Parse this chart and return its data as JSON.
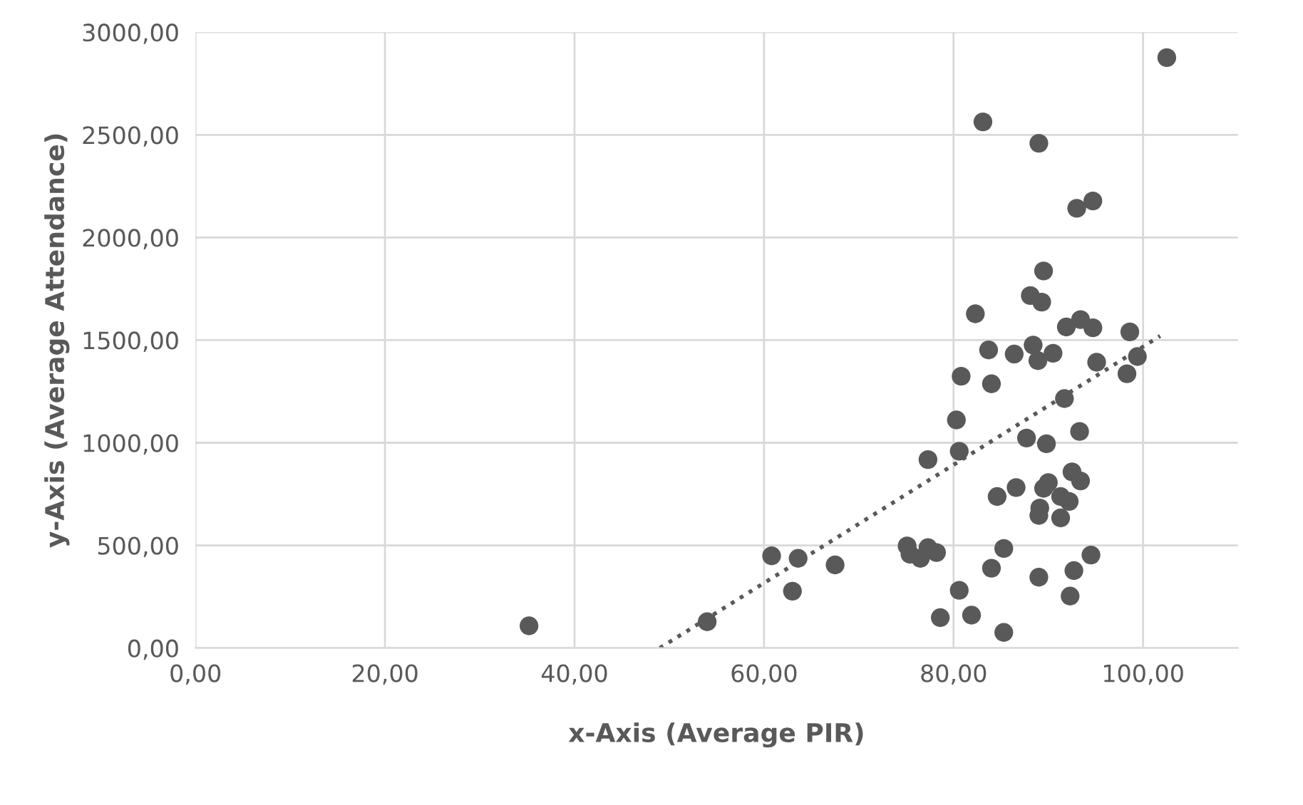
{
  "chart_data": {
    "type": "scatter",
    "xlabel": "x-Axis (Average PIR)",
    "ylabel": "y-Axis (Average Attendance)",
    "xlim": [
      0,
      110
    ],
    "ylim": [
      0,
      3000
    ],
    "xticks": [
      {
        "value": 0,
        "label": "0,00"
      },
      {
        "value": 20,
        "label": "20,00"
      },
      {
        "value": 40,
        "label": "40,00"
      },
      {
        "value": 60,
        "label": "60,00"
      },
      {
        "value": 80,
        "label": "80,00"
      },
      {
        "value": 100,
        "label": "100,00"
      }
    ],
    "yticks": [
      {
        "value": 0,
        "label": "0,00"
      },
      {
        "value": 500,
        "label": "500,00"
      },
      {
        "value": 1000,
        "label": "1000,00"
      },
      {
        "value": 1500,
        "label": "1500,00"
      },
      {
        "value": 2000,
        "label": "2000,00"
      },
      {
        "value": 2500,
        "label": "2500,00"
      },
      {
        "value": 3000,
        "label": "3000,00"
      }
    ],
    "grid": true,
    "marker": "circle",
    "series": [
      {
        "color": "#595959",
        "x": [
          102.5,
          83.1,
          89.0,
          93.0,
          94.7,
          89.5,
          88.1,
          89.3,
          82.3,
          91.9,
          93.4,
          94.7,
          98.6,
          83.7,
          88.4,
          86.4,
          88.9,
          90.5,
          95.1,
          99.4,
          98.3,
          80.8,
          84.0,
          91.7,
          80.3,
          87.7,
          93.3,
          89.8,
          80.6,
          77.3,
          90.0,
          89.5,
          86.6,
          84.6,
          92.5,
          93.4,
          91.3,
          92.2,
          89.1,
          89.0,
          91.3,
          75.1,
          75.4,
          76.5,
          77.3,
          78.2,
          60.8,
          63.6,
          67.5,
          85.3,
          84.0,
          94.5,
          92.7,
          89.0,
          63.0,
          80.6,
          92.3,
          54.0,
          78.6,
          81.9,
          85.3,
          35.2
        ],
        "values": [
          2876,
          2563,
          2459,
          2142,
          2178,
          1837,
          1717,
          1685,
          1628,
          1564,
          1600,
          1560,
          1540,
          1452,
          1476,
          1432,
          1400,
          1436,
          1392,
          1420,
          1336,
          1324,
          1287,
          1215,
          1111,
          1023,
          1055,
          995,
          959,
          918,
          806,
          778,
          782,
          738,
          858,
          814,
          738,
          714,
          682,
          646,
          634,
          497,
          457,
          437,
          489,
          465,
          449,
          437,
          405,
          485,
          389,
          453,
          377,
          345,
          277,
          281,
          253,
          128,
          148,
          160,
          76,
          108
        ]
      },
      {
        "type": "line",
        "color": "#595959",
        "line_style": "dotted",
        "marker": "none",
        "x": [
          49.0,
          101.8
        ],
        "values": [
          0,
          1520
        ]
      }
    ]
  }
}
